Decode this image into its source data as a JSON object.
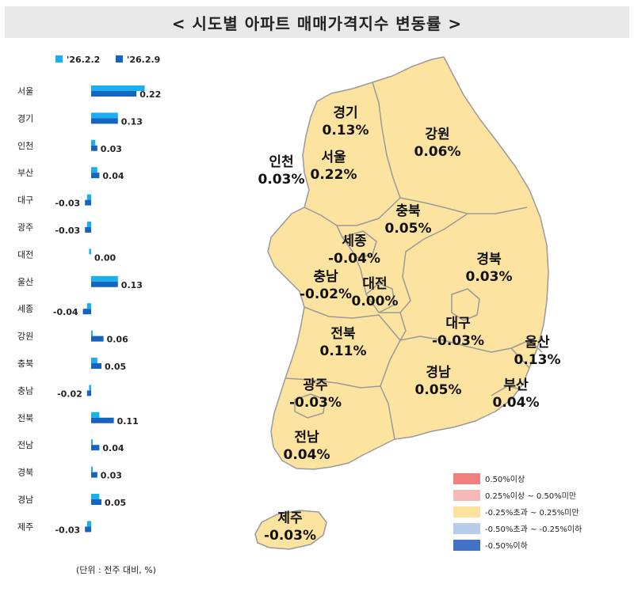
{
  "title": "< 시도별 아파트 매매가격지수 변동률 >",
  "unit_note": "(단위 : 전주 대비, %)",
  "colors": {
    "series1": "#1ab0ef",
    "series2": "#1565c0",
    "map_fill": "#fde3a0",
    "map_stroke": "#9a9a9a",
    "title_bg": "#e9e9e9"
  },
  "chart_data": {
    "type": "bar",
    "orientation": "horizontal",
    "categories": [
      "서울",
      "경기",
      "인천",
      "부산",
      "대구",
      "광주",
      "대전",
      "울산",
      "세종",
      "강원",
      "충북",
      "충남",
      "전북",
      "전남",
      "경북",
      "경남",
      "제주"
    ],
    "series": [
      {
        "name": "'26.2.2",
        "values": [
          0.26,
          0.13,
          0.02,
          0.03,
          -0.02,
          -0.02,
          -0.01,
          0.13,
          -0.02,
          0.0,
          0.03,
          -0.01,
          0.04,
          0.0,
          0.0,
          0.04,
          -0.02
        ]
      },
      {
        "name": "'26.2.9",
        "values": [
          0.22,
          0.13,
          0.03,
          0.04,
          -0.03,
          -0.03,
          0.0,
          0.13,
          -0.04,
          0.06,
          0.05,
          -0.02,
          0.11,
          0.04,
          0.03,
          0.05,
          -0.03
        ]
      }
    ],
    "data_labels": [
      "0.22",
      "0.13",
      "0.03",
      "0.04",
      "-0.03",
      "-0.03",
      "0.00",
      "0.13",
      "-0.04",
      "0.06",
      "0.05",
      "-0.02",
      "0.11",
      "0.04",
      "0.03",
      "0.05",
      "-0.03"
    ],
    "legend_position": "top-left",
    "grid": false
  },
  "map": {
    "regions": [
      {
        "name": "경기",
        "value": "0.13%"
      },
      {
        "name": "인천",
        "value": "0.03%"
      },
      {
        "name": "서울",
        "value": "0.22%"
      },
      {
        "name": "강원",
        "value": "0.06%"
      },
      {
        "name": "충북",
        "value": "0.05%"
      },
      {
        "name": "세종",
        "value": "-0.04%"
      },
      {
        "name": "경북",
        "value": "0.03%"
      },
      {
        "name": "충남",
        "value": "-0.02%"
      },
      {
        "name": "대전",
        "value": "0.00%"
      },
      {
        "name": "대구",
        "value": "-0.03%"
      },
      {
        "name": "울산",
        "value": "0.13%"
      },
      {
        "name": "전북",
        "value": "0.11%"
      },
      {
        "name": "경남",
        "value": "0.05%"
      },
      {
        "name": "부산",
        "value": "0.04%"
      },
      {
        "name": "광주",
        "value": "-0.03%"
      },
      {
        "name": "전남",
        "value": "0.04%"
      },
      {
        "name": "제주",
        "value": "-0.03%"
      }
    ]
  },
  "legend": [
    {
      "label": "0.50%이상",
      "color": "#f08080"
    },
    {
      "label": "0.25%이상 ~ 0.50%미만",
      "color": "#f7b8b8"
    },
    {
      "label": "-0.25%초과 ~ 0.25%미만",
      "color": "#fde3a0"
    },
    {
      "label": "-0.50%초과 ~ -0.25%이하",
      "color": "#b8cceb"
    },
    {
      "label": "-0.50%이하",
      "color": "#4472c4"
    }
  ]
}
